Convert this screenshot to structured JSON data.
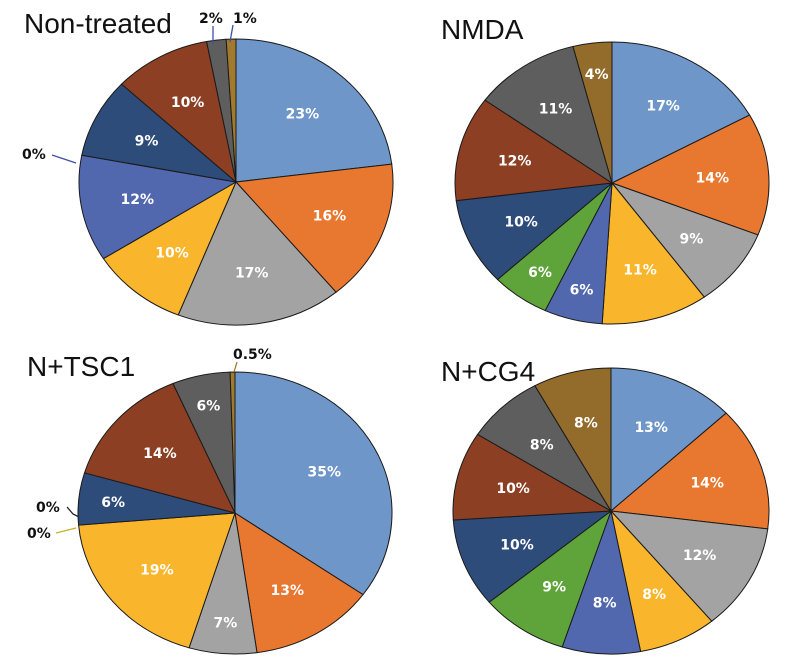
{
  "chart_data": [
    {
      "type": "pie",
      "title": "Non-treated",
      "series": [
        {
          "values": [
            23,
            16,
            17,
            10,
            12,
            0,
            9,
            10,
            2,
            1
          ]
        }
      ],
      "labels": [
        "23%",
        "16%",
        "17%",
        "10%",
        "12%",
        "0%",
        "9%",
        "10%",
        "2%",
        "1%"
      ],
      "colors": [
        "#6e96c9",
        "#e8772f",
        "#a3a3a3",
        "#f9b52b",
        "#5268ae",
        "#3f4fa8",
        "#2e4c7a",
        "#8c3f23",
        "#5e5e5e",
        "#a17a2e"
      ],
      "label_placement": [
        "inside",
        "inside",
        "inside",
        "inside",
        "inside",
        "outside-left",
        "inside",
        "inside",
        "outside-top",
        "outside-top"
      ]
    },
    {
      "type": "pie",
      "title": "NMDA",
      "series": [
        {
          "values": [
            17,
            14,
            9,
            11,
            6,
            6,
            10,
            12,
            11,
            4
          ]
        }
      ],
      "labels": [
        "17%",
        "14%",
        "9%",
        "11%",
        "6%",
        "6%",
        "10%",
        "12%",
        "11%",
        "4%"
      ],
      "colors": [
        "#6e96c9",
        "#e8772f",
        "#a3a3a3",
        "#f9b52b",
        "#5268ae",
        "#5fa43b",
        "#2e4c7a",
        "#8c3f23",
        "#5e5e5e",
        "#936b2b"
      ],
      "label_placement": [
        "inside",
        "inside",
        "inside",
        "inside",
        "inside",
        "inside",
        "inside",
        "inside",
        "inside",
        "inside"
      ]
    },
    {
      "type": "pie",
      "title": "N+TSC1",
      "series": [
        {
          "values": [
            35,
            13,
            7,
            19,
            0,
            0,
            6,
            14,
            6,
            0.5
          ]
        }
      ],
      "labels": [
        "35%",
        "13%",
        "7%",
        "19%",
        "0%",
        "0%",
        "6%",
        "14%",
        "6%",
        "0.5%"
      ],
      "colors": [
        "#6e96c9",
        "#e8772f",
        "#a3a3a3",
        "#f9b52b",
        "#c7b02a",
        "#3c4c7a",
        "#2e4c7a",
        "#8c3f23",
        "#5e5e5e",
        "#a17a2e"
      ],
      "label_placement": [
        "inside",
        "inside",
        "inside",
        "inside",
        "outside-left-low",
        "outside-left-high",
        "inside",
        "inside",
        "inside",
        "outside-top"
      ]
    },
    {
      "type": "pie",
      "title": "N+CG4",
      "series": [
        {
          "values": [
            13,
            14,
            12,
            8,
            8,
            9,
            10,
            10,
            8,
            8
          ]
        }
      ],
      "labels": [
        "13%",
        "14%",
        "12%",
        "8%",
        "8%",
        "9%",
        "10%",
        "10%",
        "8%",
        "8%"
      ],
      "colors": [
        "#6e96c9",
        "#e8772f",
        "#a3a3a3",
        "#f9b52b",
        "#5268ae",
        "#5fa43b",
        "#2e4c7a",
        "#8c3f23",
        "#5e5e5e",
        "#936b2b"
      ],
      "label_placement": [
        "inside",
        "inside",
        "inside",
        "inside",
        "inside",
        "inside",
        "inside",
        "inside",
        "inside",
        "inside"
      ]
    }
  ]
}
